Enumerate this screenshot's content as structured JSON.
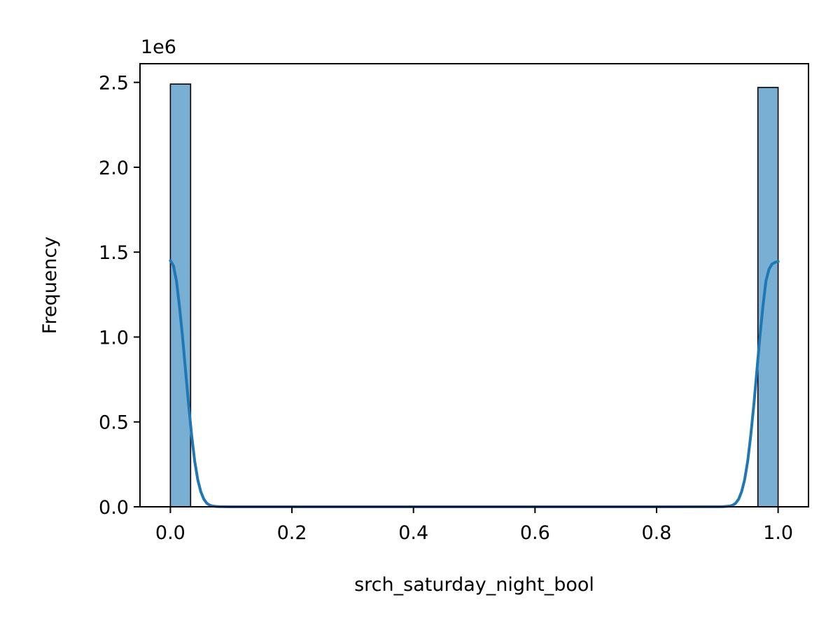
{
  "chart_data": {
    "type": "bar",
    "xlabel": "srch_saturday_night_bool",
    "ylabel": "Frequency",
    "y_offset_label": "1e6",
    "y_multiplier": 1000000,
    "xlim": [
      -0.05,
      1.05
    ],
    "ylim": [
      0,
      2610000
    ],
    "grid": false,
    "legend": "none",
    "x_ticks": [
      0.0,
      0.2,
      0.4,
      0.6,
      0.8,
      1.0
    ],
    "x_tick_labels": [
      "0.0",
      "0.2",
      "0.4",
      "0.6",
      "0.8",
      "1.0"
    ],
    "y_ticks": [
      0,
      500000,
      1000000,
      1500000,
      2000000,
      2500000
    ],
    "y_tick_labels": [
      "0.0",
      "0.5",
      "1.0",
      "1.5",
      "2.0",
      "2.5"
    ],
    "bars": [
      {
        "x0": 0.0,
        "x1": 0.0333,
        "value": 2490000
      },
      {
        "x0": 0.9667,
        "x1": 1.0,
        "value": 2470000
      }
    ],
    "kde": {
      "x": [
        0.0,
        0.005,
        0.01,
        0.015,
        0.02,
        0.025,
        0.03,
        0.035,
        0.04,
        0.045,
        0.05,
        0.055,
        0.06,
        0.065,
        0.07,
        0.075,
        0.08,
        0.09,
        0.1,
        0.2,
        0.3,
        0.4,
        0.5,
        0.6,
        0.7,
        0.8,
        0.9,
        0.91,
        0.92,
        0.925,
        0.93,
        0.935,
        0.94,
        0.945,
        0.95,
        0.955,
        0.96,
        0.965,
        0.97,
        0.975,
        0.98,
        0.985,
        0.99,
        0.995,
        1.0
      ],
      "y": [
        1450000,
        1420000,
        1330000,
        1180000,
        1000000,
        800000,
        600000,
        420000,
        270000,
        160000,
        90000,
        45000,
        20000,
        9000,
        4000,
        2000,
        1000,
        400,
        200,
        200,
        200,
        200,
        200,
        200,
        200,
        200,
        400,
        1000,
        4000,
        9000,
        20000,
        45000,
        90000,
        160000,
        270000,
        420000,
        600000,
        800000,
        1000000,
        1180000,
        1330000,
        1400000,
        1430000,
        1440000,
        1445000
      ]
    },
    "colors": {
      "bar_fill": "#7aafd4",
      "bar_edge": "#000000",
      "kde_line": "#1f77b4"
    }
  }
}
